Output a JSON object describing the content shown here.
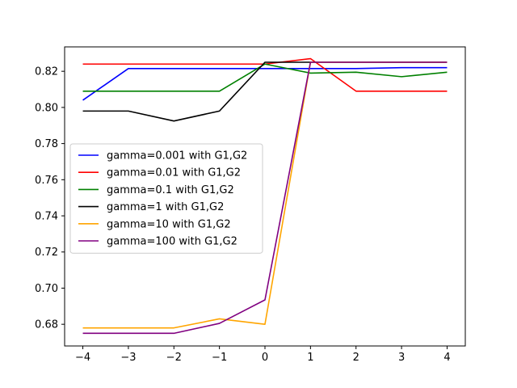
{
  "chart_data": {
    "type": "line",
    "title": "",
    "xlabel": "",
    "ylabel": "",
    "xlim": [
      -4.4,
      4.4
    ],
    "ylim": [
      0.668,
      0.8335
    ],
    "grid": false,
    "legend_position": "center-left",
    "x": [
      -4,
      -3,
      -2,
      -1,
      0,
      1,
      2,
      3,
      4
    ],
    "x_ticks": [
      -4,
      -3,
      -2,
      -1,
      0,
      1,
      2,
      3,
      4
    ],
    "y_ticks": [
      0.68,
      0.7,
      0.72,
      0.74,
      0.76,
      0.78,
      0.8,
      0.82
    ],
    "series": [
      {
        "name": "gamma=0.001 with G1,G2",
        "color": "#0000ff",
        "values": [
          0.804,
          0.8215,
          0.8215,
          0.8215,
          0.8215,
          0.8215,
          0.8215,
          0.822,
          0.822
        ]
      },
      {
        "name": "gamma=0.01 with G1,G2",
        "color": "#ff0000",
        "values": [
          0.824,
          0.824,
          0.824,
          0.824,
          0.824,
          0.827,
          0.809,
          0.809,
          0.809
        ]
      },
      {
        "name": "gamma=0.1 with G1,G2",
        "color": "#008000",
        "values": [
          0.809,
          0.809,
          0.809,
          0.809,
          0.824,
          0.819,
          0.8195,
          0.817,
          0.8195
        ]
      },
      {
        "name": "gamma=1 with G1,G2",
        "color": "#000000",
        "values": [
          0.798,
          0.798,
          0.7925,
          0.798,
          0.825,
          0.825,
          0.825,
          0.825,
          0.825
        ]
      },
      {
        "name": "gamma=10 with G1,G2",
        "color": "#ffa500",
        "values": [
          0.678,
          0.678,
          0.678,
          0.683,
          0.68,
          0.825,
          0.825,
          0.825,
          0.825
        ]
      },
      {
        "name": "gamma=100 with G1,G2",
        "color": "#800080",
        "values": [
          0.675,
          0.675,
          0.675,
          0.6805,
          0.6935,
          0.825,
          0.825,
          0.825,
          0.825
        ]
      }
    ]
  }
}
